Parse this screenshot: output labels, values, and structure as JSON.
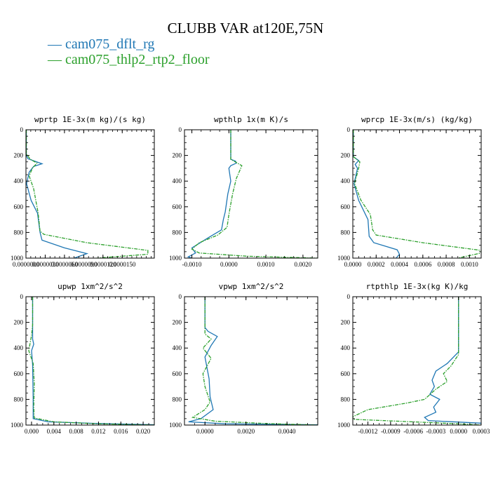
{
  "title": "CLUBB VAR at120E,75N",
  "legend": [
    {
      "label": "cam075_dflt_rg",
      "color": "#1f77b4"
    },
    {
      "label": "cam075_thlp2_rtp2_floor",
      "color": "#2ca02c"
    }
  ],
  "chart_data": [
    {
      "type": "line",
      "title": "wprtp  1E-3x(m kg)/(s kg)",
      "xlim": [
        0.0,
        2e-05
      ],
      "ylim": [
        1000,
        0
      ],
      "xticks": [
        0.0,
        3e-06,
        6e-06,
        9e-06,
        1.2e-05,
        1.5e-05
      ],
      "xtick_labels": [
        "0.0000000",
        "0.0000030",
        "0.0000060",
        "0.0000090",
        "0.0000120",
        "0.0000150"
      ],
      "yticks": [
        0,
        200,
        400,
        600,
        800,
        1000
      ],
      "ytick_labels": [
        "0",
        "200",
        "400",
        "600",
        "800",
        "1000"
      ],
      "series": [
        {
          "name": "cam075_dflt_rg",
          "color": "#1f77b4",
          "dashed": false,
          "points": [
            [
              5e-08,
              0
            ],
            [
              5e-08,
              200
            ],
            [
              3e-07,
              225
            ],
            [
              2.5e-06,
              265
            ],
            [
              1.2e-06,
              285
            ],
            [
              5e-07,
              330
            ],
            [
              1e-07,
              420
            ],
            [
              8e-07,
              550
            ],
            [
              1.8e-06,
              650
            ],
            [
              2.2e-06,
              800
            ],
            [
              2.5e-06,
              860
            ],
            [
              6e-06,
              920
            ],
            [
              9.5e-06,
              965
            ],
            [
              7.5e-06,
              1000
            ]
          ]
        },
        {
          "name": "cam075_thlp2_rtp2_floor",
          "color": "#2ca02c",
          "dashed": true,
          "points": [
            [
              5e-08,
              0
            ],
            [
              5e-08,
              190
            ],
            [
              7e-07,
              230
            ],
            [
              1.7e-06,
              260
            ],
            [
              1e-06,
              300
            ],
            [
              5e-07,
              360
            ],
            [
              1.2e-06,
              460
            ],
            [
              1.9e-06,
              650
            ],
            [
              2.2e-06,
              790
            ],
            [
              2.8e-06,
              815
            ],
            [
              9.5e-06,
              880
            ],
            [
              1.9e-05,
              940
            ],
            [
              1.9e-05,
              970
            ],
            [
              1.1e-05,
              1000
            ]
          ]
        }
      ]
    },
    {
      "type": "line",
      "title": "wpthlp  1x(m K)/s",
      "xlim": [
        -0.0012,
        0.0024
      ],
      "ylim": [
        1000,
        0
      ],
      "xticks": [
        -0.001,
        0.0,
        0.001,
        0.002
      ],
      "xtick_labels": [
        "-0.0010",
        "0.0000",
        "0.0010",
        "0.0020"
      ],
      "yticks": [
        0,
        200,
        400,
        600,
        800,
        1000
      ],
      "ytick_labels": [
        "0",
        "200",
        "400",
        "600",
        "800",
        "1000"
      ],
      "series": [
        {
          "name": "cam075_dflt_rg",
          "color": "#1f77b4",
          "dashed": false,
          "points": [
            [
              5e-05,
              0
            ],
            [
              5e-05,
              230
            ],
            [
              0.00018,
              245
            ],
            [
              0.0002,
              260
            ],
            [
              5e-05,
              280
            ],
            [
              0.0,
              300
            ],
            [
              5e-05,
              400
            ],
            [
              -3e-05,
              500
            ],
            [
              -0.0001,
              640
            ],
            [
              -0.00015,
              700
            ],
            [
              -0.0002,
              780
            ],
            [
              -0.00055,
              840
            ],
            [
              -0.001,
              920
            ],
            [
              -0.0009,
              960
            ],
            [
              -0.0011,
              990
            ],
            [
              -0.001,
              1000
            ]
          ]
        },
        {
          "name": "cam075_thlp2_rtp2_floor",
          "color": "#2ca02c",
          "dashed": true,
          "points": [
            [
              5e-05,
              0
            ],
            [
              5e-05,
              230
            ],
            [
              0.0002,
              255
            ],
            [
              0.00035,
              280
            ],
            [
              0.0002,
              380
            ],
            [
              0.0001,
              500
            ],
            [
              0.0,
              660
            ],
            [
              -5e-05,
              760
            ],
            [
              -0.0003,
              820
            ],
            [
              -0.0008,
              880
            ],
            [
              -0.001,
              930
            ],
            [
              -0.0008,
              960
            ],
            [
              0.0005,
              985
            ],
            [
              0.0024,
              1000
            ]
          ]
        }
      ]
    },
    {
      "type": "line",
      "title": "wprcp  1E-3x(m/s) (kg/kg)",
      "xlim": [
        0.0,
        0.0011
      ],
      "ylim": [
        1000,
        0
      ],
      "xticks": [
        0.0,
        0.0002,
        0.0004,
        0.0006,
        0.0008,
        0.001
      ],
      "xtick_labels": [
        "0.0000",
        "0.0002",
        "0.0004",
        "0.0006",
        "0.0008",
        "0.0010"
      ],
      "yticks": [
        0,
        200,
        400,
        600,
        800,
        1000
      ],
      "ytick_labels": [
        "0",
        "200",
        "400",
        "600",
        "800",
        "1000"
      ],
      "series": [
        {
          "name": "cam075_dflt_rg",
          "color": "#1f77b4",
          "dashed": false,
          "points": [
            [
              5e-06,
              0
            ],
            [
              5e-06,
              210
            ],
            [
              5e-05,
              240
            ],
            [
              2e-05,
              270
            ],
            [
              4e-05,
              300
            ],
            [
              1e-05,
              420
            ],
            [
              5e-05,
              550
            ],
            [
              0.00013,
              700
            ],
            [
              0.00014,
              830
            ],
            [
              0.00018,
              880
            ],
            [
              0.00038,
              935
            ],
            [
              0.0004,
              970
            ],
            [
              0.00037,
              1000
            ]
          ]
        },
        {
          "name": "cam075_thlp2_rtp2_floor",
          "color": "#2ca02c",
          "dashed": true,
          "points": [
            [
              5e-06,
              0
            ],
            [
              5e-06,
              210
            ],
            [
              6e-05,
              250
            ],
            [
              5e-05,
              300
            ],
            [
              1.5e-05,
              420
            ],
            [
              7e-05,
              550
            ],
            [
              0.00015,
              660
            ],
            [
              0.00017,
              780
            ],
            [
              0.0002,
              820
            ],
            [
              0.0006,
              880
            ],
            [
              0.0011,
              940
            ],
            [
              0.0011,
              960
            ],
            [
              0.0009,
              1000
            ]
          ]
        }
      ]
    },
    {
      "type": "line",
      "title": "upwp  1xm^2/s^2",
      "xlim": [
        -0.001,
        0.022
      ],
      "ylim": [
        1000,
        0
      ],
      "xticks": [
        0.0,
        0.004,
        0.008,
        0.012,
        0.016,
        0.02
      ],
      "xtick_labels": [
        "0.000",
        "0.004",
        "0.008",
        "0.012",
        "0.016",
        "0.020"
      ],
      "yticks": [
        0,
        200,
        400,
        600,
        800,
        1000
      ],
      "ytick_labels": [
        "0",
        "200",
        "400",
        "600",
        "800",
        "1000"
      ],
      "series": [
        {
          "name": "cam075_dflt_rg",
          "color": "#1f77b4",
          "dashed": false,
          "points": [
            [
              0.0002,
              0
            ],
            [
              0.0002,
              330
            ],
            [
              0.0004,
              370
            ],
            [
              0.0,
              420
            ],
            [
              0.0002,
              530
            ],
            [
              0.0003,
              800
            ],
            [
              0.0003,
              950
            ],
            [
              0.003,
              975
            ],
            [
              0.012,
              988
            ],
            [
              0.022,
              997
            ]
          ]
        },
        {
          "name": "cam075_thlp2_rtp2_floor",
          "color": "#2ca02c",
          "dashed": true,
          "points": [
            [
              0.0002,
              0
            ],
            [
              0.0002,
              220
            ],
            [
              0.0,
              300
            ],
            [
              -0.0005,
              420
            ],
            [
              0.0003,
              520
            ],
            [
              0.0005,
              680
            ],
            [
              0.0004,
              860
            ],
            [
              0.0005,
              945
            ],
            [
              0.004,
              975
            ],
            [
              0.012,
              990
            ],
            [
              0.022,
              1000
            ]
          ]
        }
      ]
    },
    {
      "type": "line",
      "title": "vpwp  1xm^2/s^2",
      "xlim": [
        -0.001,
        0.0055
      ],
      "ylim": [
        1000,
        0
      ],
      "xticks": [
        0.0,
        0.002,
        0.004
      ],
      "xtick_labels": [
        "0.0000",
        "0.0020",
        "0.0040"
      ],
      "yticks": [
        0,
        200,
        400,
        600,
        800,
        1000
      ],
      "ytick_labels": [
        "0",
        "200",
        "400",
        "600",
        "800",
        "1000"
      ],
      "series": [
        {
          "name": "cam075_dflt_rg",
          "color": "#1f77b4",
          "dashed": false,
          "points": [
            [
              0.0,
              0
            ],
            [
              0.0,
              240
            ],
            [
              0.00015,
              270
            ],
            [
              0.0006,
              310
            ],
            [
              0.0003,
              380
            ],
            [
              0.0,
              470
            ],
            [
              0.0002,
              640
            ],
            [
              0.00025,
              780
            ],
            [
              0.0004,
              880
            ],
            [
              -0.0002,
              950
            ],
            [
              -0.0008,
              975
            ],
            [
              0.001,
              990
            ],
            [
              0.0055,
              998
            ]
          ]
        },
        {
          "name": "cam075_thlp2_rtp2_floor",
          "color": "#2ca02c",
          "dashed": true,
          "points": [
            [
              0.0,
              0
            ],
            [
              0.0,
              290
            ],
            [
              0.0003,
              330
            ],
            [
              -0.0001,
              400
            ],
            [
              0.0003,
              480
            ],
            [
              -0.0001,
              600
            ],
            [
              0.0,
              700
            ],
            [
              0.00025,
              820
            ],
            [
              0.0,
              880
            ],
            [
              -0.0006,
              940
            ],
            [
              0.0005,
              970
            ],
            [
              0.003,
              988
            ],
            [
              0.0055,
              1000
            ]
          ]
        }
      ]
    },
    {
      "type": "line",
      "title": "rtpthlp  1E-3x(kg K)/kg",
      "xlim": [
        -0.0014,
        0.0003
      ],
      "ylim": [
        1000,
        0
      ],
      "xticks": [
        -0.0012,
        -0.0009,
        -0.0006,
        -0.0003,
        0.0,
        0.0003
      ],
      "xtick_labels": [
        "-0.0012",
        "-0.0009",
        "-0.0006",
        "-0.0003",
        "0.0000",
        "0.0003"
      ],
      "yticks": [
        0,
        200,
        400,
        600,
        800,
        1000
      ],
      "ytick_labels": [
        "0",
        "200",
        "400",
        "600",
        "800",
        "1000"
      ],
      "series": [
        {
          "name": "cam075_dflt_rg",
          "color": "#1f77b4",
          "dashed": false,
          "points": [
            [
              0.0,
              0
            ],
            [
              0.0,
              430
            ],
            [
              -0.00015,
              520
            ],
            [
              -0.0003,
              580
            ],
            [
              -0.00035,
              650
            ],
            [
              -0.00032,
              700
            ],
            [
              -0.00038,
              760
            ],
            [
              -0.00025,
              800
            ],
            [
              -0.00033,
              860
            ],
            [
              -0.0003,
              900
            ],
            [
              -0.00045,
              940
            ],
            [
              -0.0004,
              965
            ],
            [
              0.0003,
              985
            ],
            [
              0.0003,
              1000
            ]
          ]
        },
        {
          "name": "cam075_thlp2_rtp2_floor",
          "color": "#2ca02c",
          "dashed": true,
          "points": [
            [
              0.0,
              0
            ],
            [
              0.0,
              450
            ],
            [
              -0.0001,
              540
            ],
            [
              -0.0002,
              600
            ],
            [
              -0.00015,
              660
            ],
            [
              -0.0003,
              720
            ],
            [
              -0.00045,
              800
            ],
            [
              -0.0007,
              830
            ],
            [
              -0.0012,
              880
            ],
            [
              -0.0014,
              935
            ],
            [
              -0.0014,
              955
            ],
            [
              -0.0006,
              975
            ],
            [
              0.0,
              990
            ],
            [
              0.0003,
              1000
            ]
          ]
        }
      ]
    }
  ]
}
